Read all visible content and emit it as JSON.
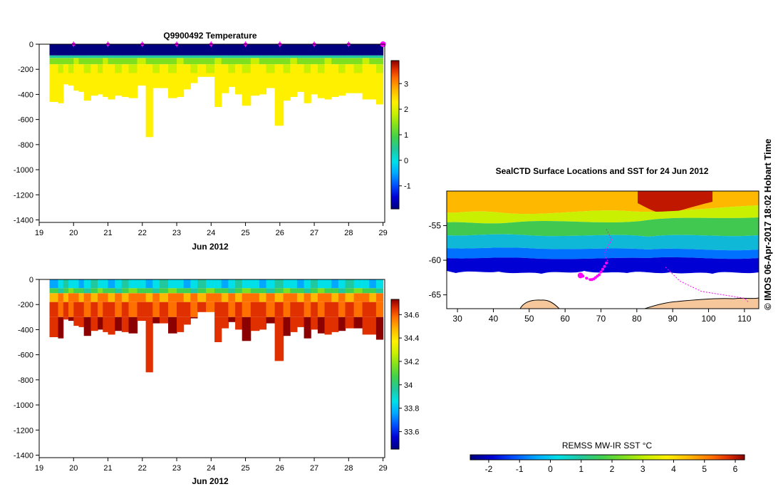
{
  "figure": {
    "credit": "© IMOS 06-Apr-2017 18:02 Hobart Time"
  },
  "chart_data": [
    {
      "id": "temperature-section",
      "type": "heatmap",
      "title": "Q9900492  Temperature",
      "xlabel": "Jun 2012",
      "ylabel": "",
      "x_ticks": [
        "19",
        "20",
        "21",
        "22",
        "23",
        "24",
        "25",
        "26",
        "27",
        "28",
        "29"
      ],
      "x_range": [
        19,
        29.05
      ],
      "y_ticks": [
        "0",
        "-200",
        "-400",
        "-600",
        "-800",
        "-1000",
        "-1200",
        "-1400"
      ],
      "y_range": [
        -1420,
        0
      ],
      "profile_days": [
        19.3,
        19.55,
        19.7,
        19.85,
        20.0,
        20.15,
        20.3,
        20.5,
        20.7,
        20.85,
        21.0,
        21.2,
        21.4,
        21.6,
        21.85,
        22.1,
        22.3,
        22.5,
        22.75,
        23.0,
        23.2,
        23.4,
        23.6,
        23.85,
        24.1,
        24.3,
        24.5,
        24.7,
        24.9,
        25.15,
        25.4,
        25.6,
        25.85,
        26.1,
        26.3,
        26.5,
        26.7,
        26.9,
        27.1,
        27.3,
        27.5,
        27.7,
        27.9,
        28.15,
        28.4,
        28.6,
        28.8
      ],
      "profile_max_depth": [
        -460,
        -470,
        -320,
        -330,
        -370,
        -380,
        -450,
        -410,
        -400,
        -420,
        -440,
        -410,
        -420,
        -430,
        -330,
        -740,
        -350,
        -350,
        -430,
        -420,
        -360,
        -310,
        -260,
        -260,
        -500,
        -390,
        -340,
        -400,
        -490,
        -410,
        -400,
        -350,
        -650,
        -450,
        -420,
        -380,
        -470,
        -400,
        -430,
        -440,
        -420,
        -410,
        -390,
        -390,
        -440,
        -440,
        -480
      ],
      "surface_markers_days": [
        20,
        21,
        22,
        23,
        24,
        25,
        26,
        27,
        28,
        29
      ],
      "colorbar": {
        "ticks": [
          "3",
          "2",
          "1",
          "0",
          "-1"
        ],
        "tick_values": [
          3,
          2,
          1,
          0,
          -1
        ],
        "range": [
          -1.9,
          3.9
        ],
        "colors": [
          "#00007f",
          "#0000d4",
          "#0050ff",
          "#00a8ff",
          "#00e0e8",
          "#20c8a0",
          "#40d050",
          "#7fe020",
          "#c8f000",
          "#fff000",
          "#ffb800",
          "#ff7000",
          "#e03000",
          "#8b0000"
        ]
      },
      "layers": [
        {
          "top": 0,
          "bottom": -90,
          "value": -1.8
        },
        {
          "top": -90,
          "bottom": -110,
          "value": 0.4
        },
        {
          "top": -110,
          "bottom": -160,
          "value": 1.4
        },
        {
          "top": -160,
          "bottom": -230,
          "value": 1.9
        },
        {
          "top": -230,
          "bottom": -900,
          "value": 2.2
        }
      ]
    },
    {
      "id": "salinity-section",
      "type": "heatmap",
      "title": "",
      "xlabel": "Jun 2012",
      "ylabel": "",
      "x_ticks": [
        "19",
        "20",
        "21",
        "22",
        "23",
        "24",
        "25",
        "26",
        "27",
        "28",
        "29"
      ],
      "x_range": [
        19,
        29.05
      ],
      "y_ticks": [
        "0",
        "-200",
        "-400",
        "-600",
        "-800",
        "-1000",
        "-1200",
        "-1400"
      ],
      "y_range": [
        -1420,
        0
      ],
      "colorbar": {
        "ticks": [
          "34.6",
          "34.4",
          "34.2",
          "34",
          "33.8",
          "33.6"
        ],
        "tick_values": [
          34.6,
          34.4,
          34.2,
          34.0,
          33.8,
          33.6
        ],
        "range": [
          33.45,
          34.73
        ],
        "colors": [
          "#00007f",
          "#0000d4",
          "#0050ff",
          "#00a8ff",
          "#00e0e8",
          "#20c8a0",
          "#40d050",
          "#7fe020",
          "#c8f000",
          "#fff000",
          "#ffb800",
          "#ff7000",
          "#e03000",
          "#8b0000"
        ]
      },
      "layers": [
        {
          "top": 0,
          "bottom": -70,
          "value": 33.85
        },
        {
          "top": -70,
          "bottom": -110,
          "value": 34.05
        },
        {
          "top": -110,
          "bottom": -180,
          "value": 34.5
        },
        {
          "top": -180,
          "bottom": -300,
          "value": 34.6
        },
        {
          "top": -300,
          "bottom": -900,
          "value": 34.68
        }
      ]
    },
    {
      "id": "sst-map",
      "type": "heatmap",
      "title": "SealCTD Surface Locations and SST for 24 Jun 2012",
      "xlabel": "",
      "ylabel": "",
      "x_ticks": [
        "30",
        "40",
        "50",
        "60",
        "70",
        "80",
        "90",
        "100",
        "110"
      ],
      "x_range": [
        27,
        114
      ],
      "y_ticks": [
        "-55",
        "-60",
        "-65"
      ],
      "y_range": [
        -67,
        -50
      ],
      "track_lon": [
        71.5,
        71,
        70.5,
        70,
        69.5,
        69,
        68.5,
        68,
        67.5,
        67,
        66,
        65,
        64.3
      ],
      "track_lat": [
        -60.4,
        -60.9,
        -61.3,
        -61.7,
        -62.1,
        -62.3,
        -62.5,
        -62.7,
        -62.8,
        -62.8,
        -62.6,
        -62.3,
        -62.2
      ],
      "colorbar": {
        "label": "REMSS MW-IR SST °C",
        "ticks": [
          "-2",
          "-1",
          "0",
          "1",
          "2",
          "3",
          "4",
          "5",
          "6"
        ],
        "tick_values": [
          -2,
          -1,
          0,
          1,
          2,
          3,
          4,
          5,
          6
        ],
        "range": [
          -2.6,
          6.3
        ],
        "colors": [
          "#00007f",
          "#0000d4",
          "#0050ff",
          "#00a8ff",
          "#00e0e8",
          "#20c8a0",
          "#40d050",
          "#7fe020",
          "#c8f000",
          "#fff000",
          "#ffb800",
          "#ff7000",
          "#e03000",
          "#8b0000"
        ]
      }
    }
  ]
}
